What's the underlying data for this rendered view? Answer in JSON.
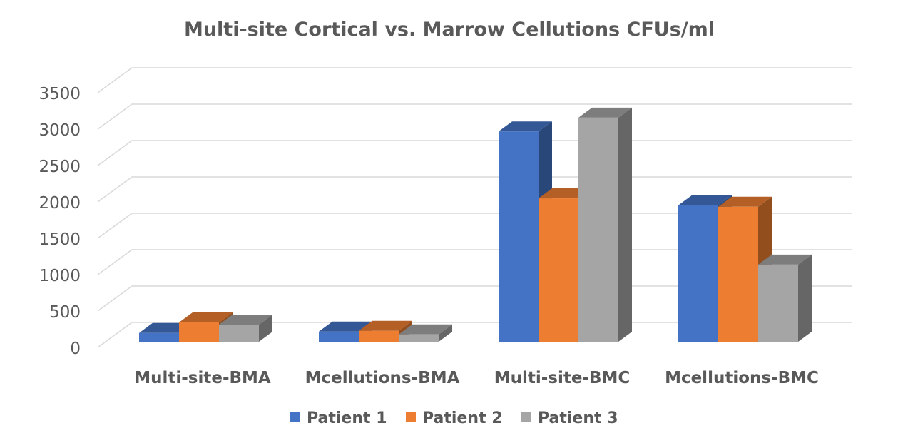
{
  "chart_data": {
    "type": "bar",
    "style": "3d-clustered-column",
    "title": "Multi-site Cortical vs. Marrow Cellutions CFUs/ml",
    "xlabel": "",
    "ylabel": "",
    "categories": [
      "Multi-site-BMA",
      "Mcellutions-BMA",
      "Multi-site-BMC",
      "Mcellutions-BMC"
    ],
    "series": [
      {
        "name": "Patient 1",
        "color": "#4472C4",
        "values": [
          120,
          140,
          2890,
          1875
        ]
      },
      {
        "name": "Patient 2",
        "color": "#ED7D31",
        "values": [
          265,
          150,
          1970,
          1855
        ]
      },
      {
        "name": "Patient 3",
        "color": "#A5A5A5",
        "values": [
          235,
          100,
          3080,
          1060
        ]
      }
    ],
    "ylim": [
      0,
      3500
    ],
    "yticks": [
      0,
      500,
      1000,
      1500,
      2000,
      2500,
      3000,
      3500
    ],
    "grid": true,
    "legend": "bottom"
  }
}
